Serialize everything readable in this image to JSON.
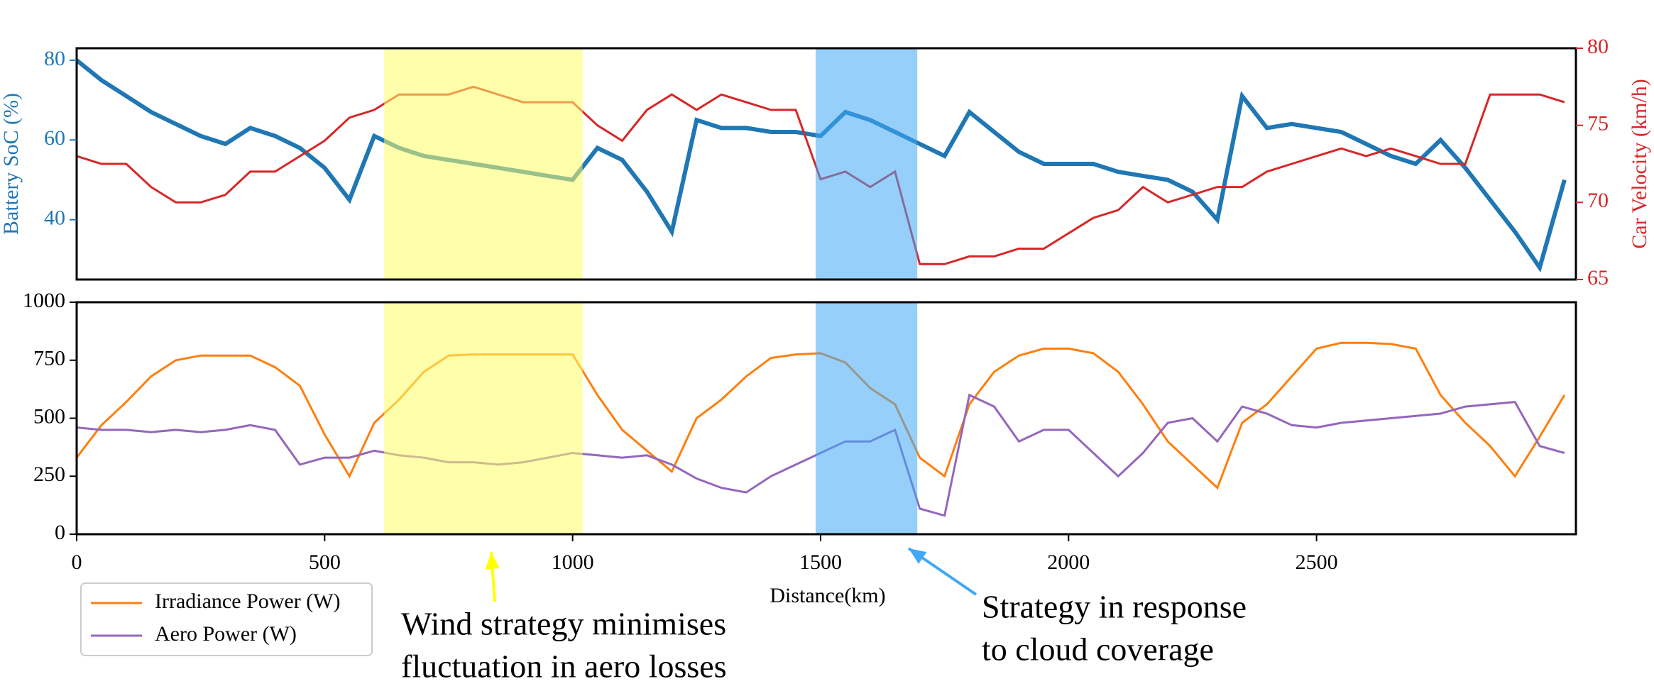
{
  "chart_data": [
    {
      "type": "line",
      "ylabel": "Battery SoC (%)",
      "y2label": "Car Velocity (km/h)",
      "x": [
        0,
        50,
        100,
        150,
        200,
        250,
        300,
        350,
        400,
        450,
        500,
        550,
        600,
        650,
        700,
        750,
        800,
        850,
        900,
        950,
        1000,
        1050,
        1100,
        1150,
        1200,
        1250,
        1300,
        1350,
        1400,
        1450,
        1500,
        1550,
        1600,
        1650,
        1700,
        1750,
        1800,
        1850,
        1900,
        1950,
        2000,
        2050,
        2100,
        2150,
        2200,
        2250,
        2300,
        2350,
        2400,
        2450,
        2500,
        2550,
        2600,
        2650,
        2700,
        2750,
        2800,
        2850,
        2900,
        2950,
        3000
      ],
      "xlim": [
        0,
        3023
      ],
      "ylim": [
        25,
        83
      ],
      "yticks": [
        40,
        60,
        80
      ],
      "y2lim": [
        65,
        80
      ],
      "y2ticks": [
        65,
        70,
        75,
        80
      ],
      "spans": [
        {
          "x0": 620,
          "x1": 1020,
          "color": "#ffff66"
        },
        {
          "x0": 1490,
          "x1": 1695,
          "color": "#3fa9f5"
        }
      ],
      "series": [
        {
          "color": "#1f77b4",
          "axis": "y",
          "values": [
            80,
            75,
            71,
            67,
            64,
            61,
            59,
            63,
            61,
            58,
            53,
            45,
            61,
            58,
            56,
            55,
            54,
            53,
            52,
            51,
            50,
            58,
            55,
            47,
            37,
            65,
            63,
            63,
            62,
            62,
            61,
            67,
            65,
            62,
            59,
            56,
            67,
            62,
            57,
            54,
            54,
            54,
            52,
            51,
            50,
            47,
            40,
            71,
            63,
            64,
            63,
            62,
            59,
            56,
            54,
            60,
            53,
            45,
            37,
            28,
            50
          ]
        },
        {
          "color": "#d62728",
          "axis": "y2",
          "values": [
            73,
            72.5,
            72.5,
            71,
            70,
            70,
            70.5,
            72,
            72,
            73,
            74,
            75.5,
            76,
            77,
            77,
            77,
            77.5,
            77,
            76.5,
            76.5,
            76.5,
            75,
            74,
            76,
            77,
            76,
            77,
            76.5,
            76,
            76,
            71.5,
            72,
            71,
            72,
            66,
            66,
            66.5,
            66.5,
            67,
            67,
            68,
            69,
            69.5,
            71,
            70,
            70.5,
            71,
            71,
            72,
            72.5,
            73,
            73.5,
            73,
            73.5,
            73,
            72.5,
            72.5,
            77,
            77,
            77,
            76.5
          ]
        }
      ]
    },
    {
      "type": "line",
      "xlabel": "Distance(km)",
      "x": [
        0,
        50,
        100,
        150,
        200,
        250,
        300,
        350,
        400,
        450,
        500,
        550,
        600,
        650,
        700,
        750,
        800,
        850,
        900,
        950,
        1000,
        1050,
        1100,
        1150,
        1200,
        1250,
        1300,
        1350,
        1400,
        1450,
        1500,
        1550,
        1600,
        1650,
        1700,
        1750,
        1800,
        1850,
        1900,
        1950,
        2000,
        2050,
        2100,
        2150,
        2200,
        2250,
        2300,
        2350,
        2400,
        2450,
        2500,
        2550,
        2600,
        2650,
        2700,
        2750,
        2800,
        2850,
        2900,
        2950,
        3000
      ],
      "xlim": [
        0,
        3023
      ],
      "xticks": [
        0,
        500,
        1000,
        1500,
        2000,
        2500
      ],
      "ylim": [
        0,
        1000
      ],
      "yticks": [
        0,
        250,
        500,
        750,
        1000
      ],
      "legend": "lower left",
      "spans": [
        {
          "x0": 620,
          "x1": 1020,
          "color": "#ffff66"
        },
        {
          "x0": 1490,
          "x1": 1695,
          "color": "#3fa9f5"
        }
      ],
      "series": [
        {
          "name": "Irradiance Power (W)",
          "color": "#ff7f0e",
          "values": [
            330,
            470,
            570,
            680,
            750,
            770,
            770,
            770,
            720,
            640,
            430,
            250,
            480,
            580,
            700,
            770,
            775,
            775,
            775,
            775,
            775,
            600,
            450,
            360,
            270,
            500,
            580,
            680,
            760,
            775,
            780,
            740,
            630,
            560,
            330,
            250,
            560,
            700,
            770,
            800,
            800,
            780,
            700,
            560,
            400,
            300,
            200,
            480,
            560,
            680,
            800,
            825,
            825,
            820,
            800,
            600,
            480,
            380,
            250,
            420,
            600
          ]
        },
        {
          "name": "Aero Power (W)",
          "color": "#9467bd",
          "values": [
            460,
            450,
            450,
            440,
            450,
            440,
            450,
            470,
            450,
            300,
            330,
            330,
            360,
            340,
            330,
            310,
            310,
            300,
            310,
            330,
            350,
            340,
            330,
            340,
            300,
            240,
            200,
            180,
            250,
            300,
            350,
            400,
            400,
            450,
            110,
            80,
            600,
            550,
            400,
            450,
            450,
            350,
            250,
            350,
            480,
            500,
            400,
            550,
            520,
            470,
            460,
            480,
            490,
            500,
            510,
            520,
            550,
            560,
            570,
            380,
            350
          ]
        }
      ],
      "annotations": [
        {
          "text": [
            "Wind strategy minimises",
            "fluctuation in aero losses"
          ],
          "color": "#ffff00"
        },
        {
          "text": [
            "Strategy in response",
            "to cloud coverage"
          ],
          "color": "#3fa9f5"
        }
      ]
    }
  ]
}
